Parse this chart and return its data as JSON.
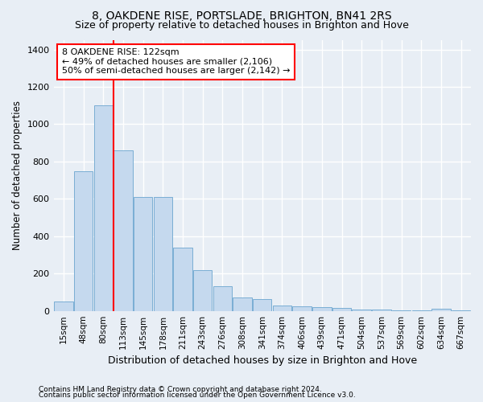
{
  "title": "8, OAKDENE RISE, PORTSLADE, BRIGHTON, BN41 2RS",
  "subtitle": "Size of property relative to detached houses in Brighton and Hove",
  "xlabel": "Distribution of detached houses by size in Brighton and Hove",
  "ylabel": "Number of detached properties",
  "bar_color": "#c5d9ee",
  "bar_edge_color": "#7aaed4",
  "bar_categories": [
    "15sqm",
    "48sqm",
    "80sqm",
    "113sqm",
    "145sqm",
    "178sqm",
    "211sqm",
    "243sqm",
    "276sqm",
    "308sqm",
    "341sqm",
    "374sqm",
    "406sqm",
    "439sqm",
    "471sqm",
    "504sqm",
    "537sqm",
    "569sqm",
    "602sqm",
    "634sqm",
    "667sqm"
  ],
  "bar_values": [
    50,
    750,
    1100,
    860,
    610,
    610,
    340,
    220,
    130,
    70,
    65,
    30,
    25,
    20,
    15,
    8,
    8,
    3,
    3,
    10,
    3
  ],
  "ylim": [
    0,
    1450
  ],
  "yticks": [
    0,
    200,
    400,
    600,
    800,
    1000,
    1200,
    1400
  ],
  "annotation_text": "8 OAKDENE RISE: 122sqm\n← 49% of detached houses are smaller (2,106)\n50% of semi-detached houses are larger (2,142) →",
  "red_line_x": 2.5,
  "footnote1": "Contains HM Land Registry data © Crown copyright and database right 2024.",
  "footnote2": "Contains public sector information licensed under the Open Government Licence v3.0.",
  "background_color": "#e8eef5",
  "plot_bg_color": "#e8eef5",
  "grid_color": "#ffffff",
  "title_fontsize": 10,
  "subtitle_fontsize": 9,
  "annotation_fontsize": 8
}
